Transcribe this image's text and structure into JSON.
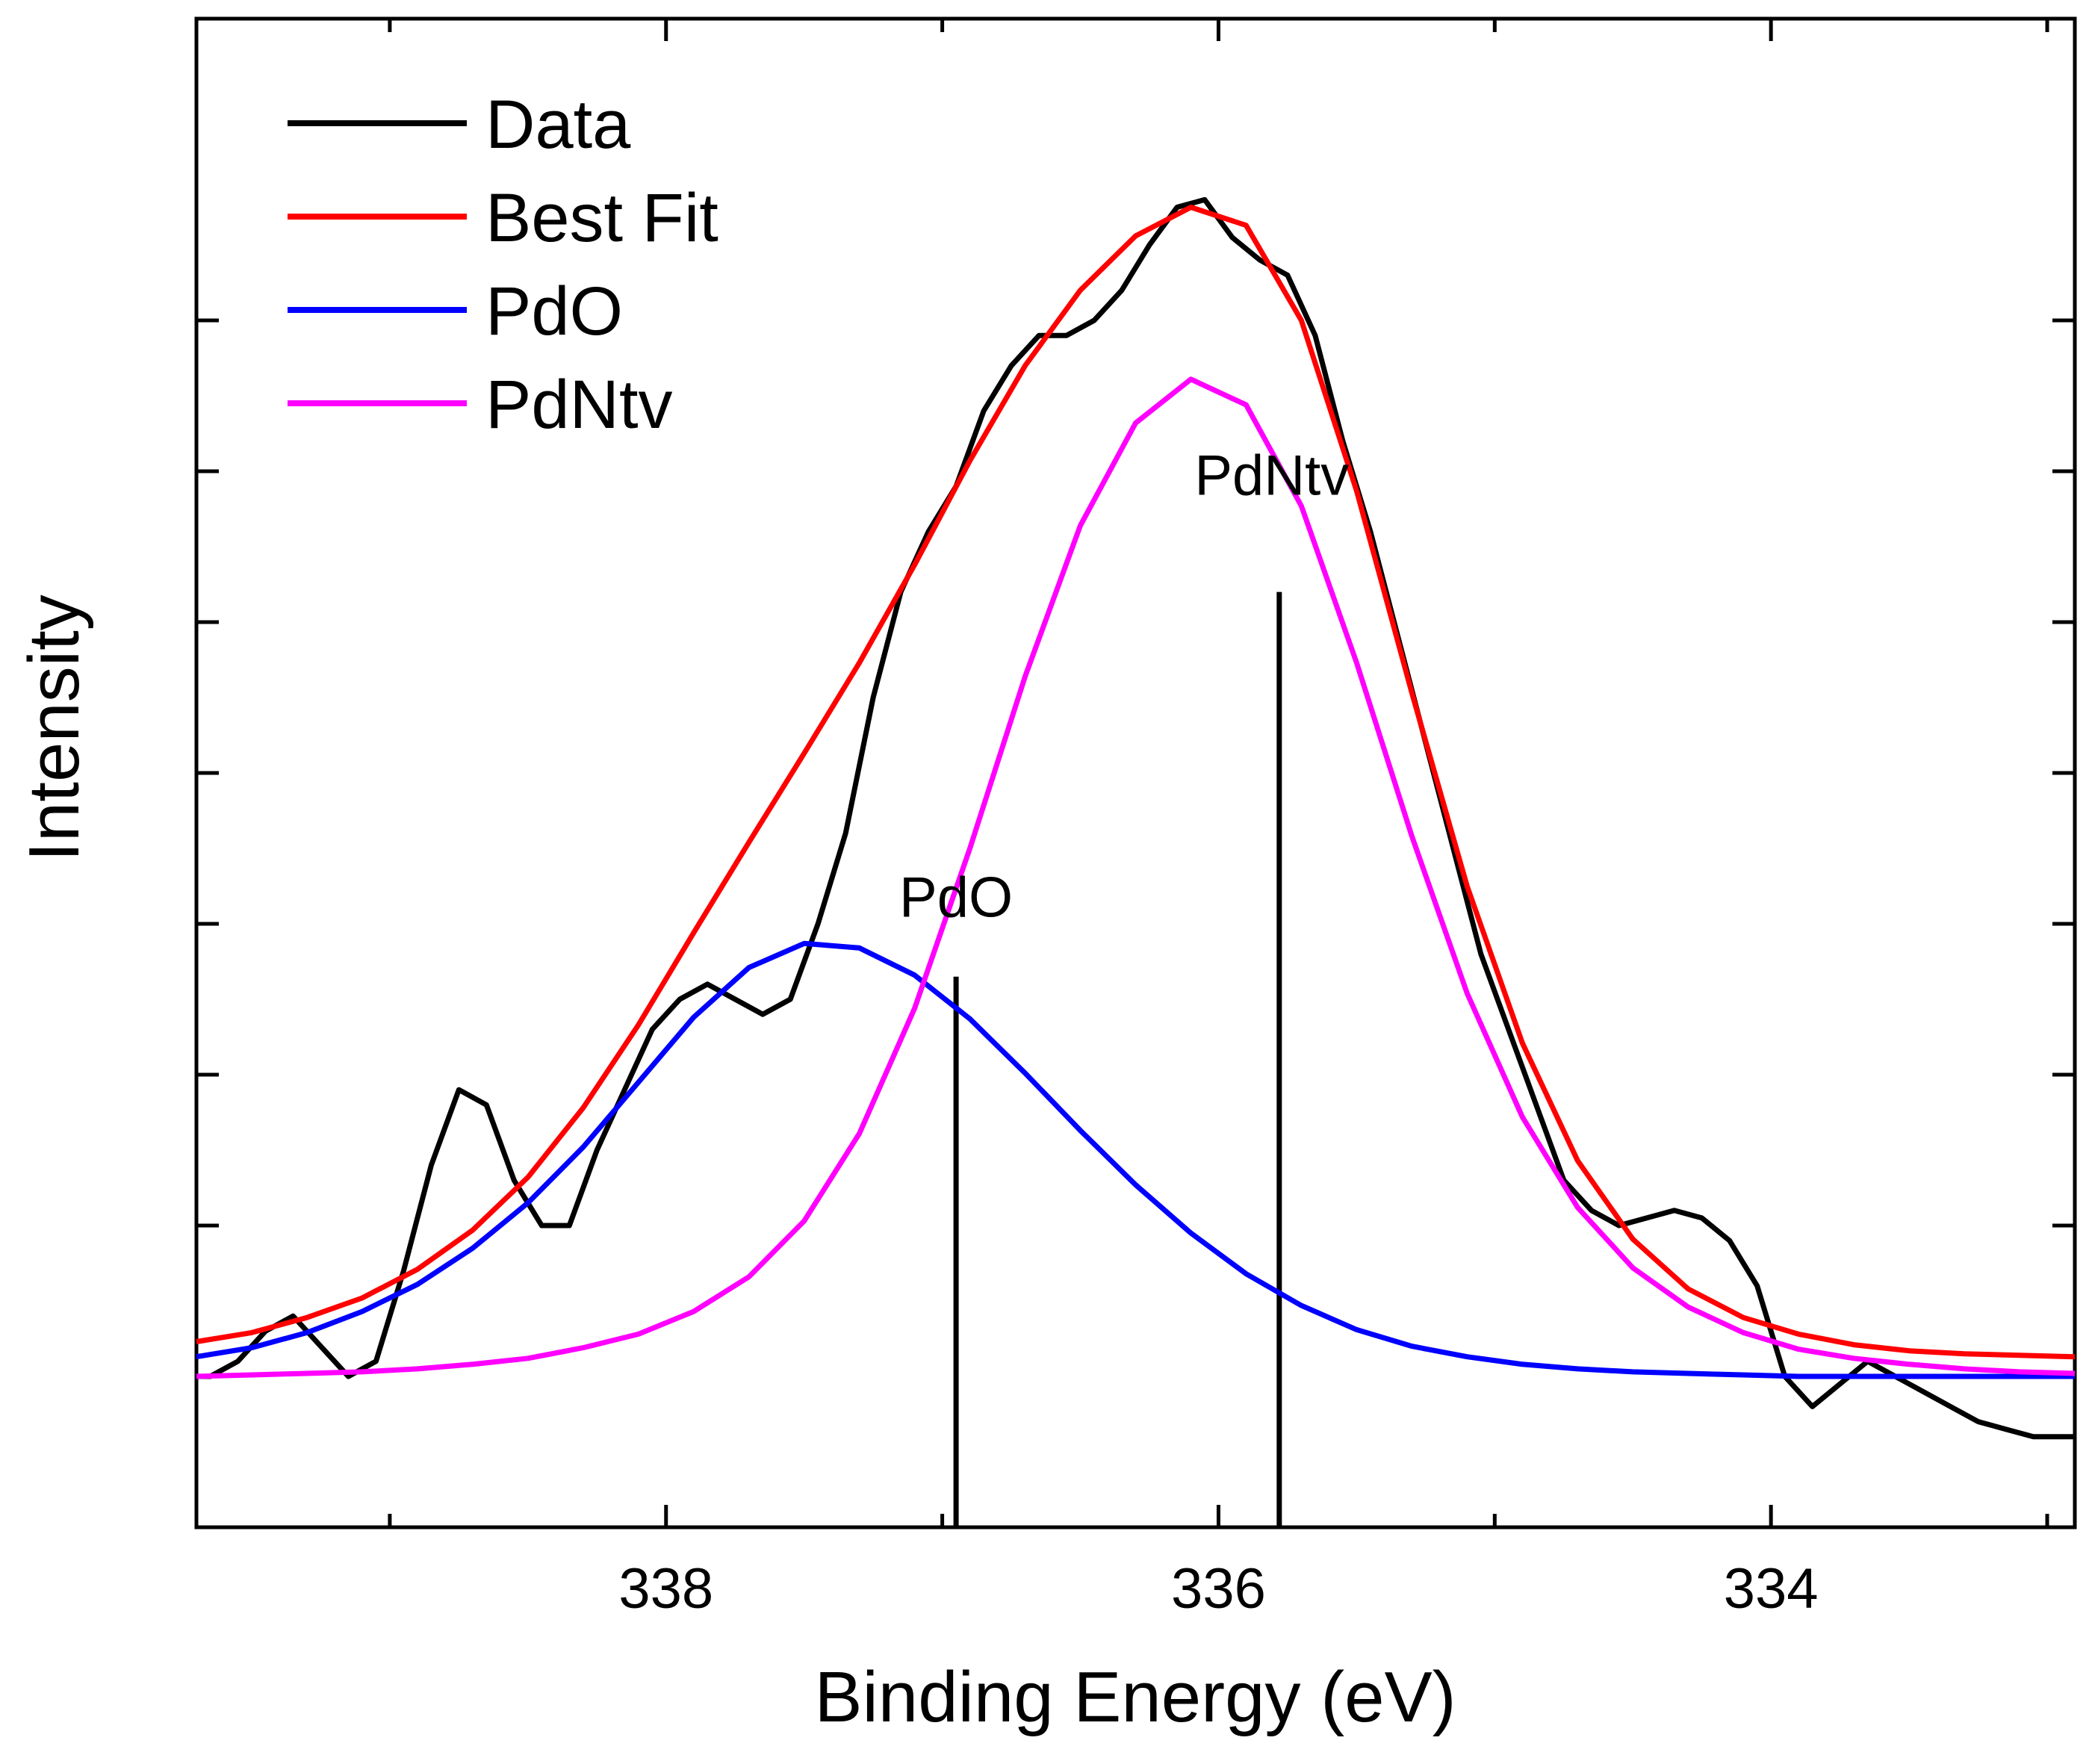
{
  "chart_data": {
    "type": "line",
    "title": "",
    "xlabel": "Binding Energy (eV)",
    "ylabel": "Intensity",
    "xlim": [
      339.7,
      332.9
    ],
    "ylim": [
      0,
      1.0
    ],
    "x_ticks": [
      {
        "value": 338,
        "label": "338"
      },
      {
        "value": 336,
        "label": "336"
      },
      {
        "value": 334,
        "label": "334"
      }
    ],
    "x_minor_ticks": [
      339,
      337,
      335,
      333
    ],
    "y_ticks": [
      0.1,
      0.2,
      0.3,
      0.4,
      0.5,
      0.6,
      0.7,
      0.8
    ],
    "legend": {
      "position": "top-left"
    },
    "series": [
      {
        "name": "Data",
        "color": "#000000",
        "x": [
          339.7,
          339.65,
          339.55,
          339.45,
          339.35,
          339.25,
          339.15,
          339.05,
          338.95,
          338.85,
          338.75,
          338.65,
          338.55,
          338.45,
          338.35,
          338.25,
          338.15,
          338.05,
          337.95,
          337.85,
          337.75,
          337.65,
          337.55,
          337.45,
          337.35,
          337.25,
          337.15,
          337.05,
          336.95,
          336.85,
          336.75,
          336.65,
          336.55,
          336.45,
          336.35,
          336.25,
          336.15,
          336.05,
          335.95,
          335.85,
          335.75,
          335.65,
          335.55,
          335.45,
          335.35,
          335.25,
          335.15,
          335.05,
          334.95,
          334.85,
          334.75,
          334.65,
          334.55,
          334.45,
          334.35,
          334.25,
          334.15,
          334.05,
          333.95,
          333.85,
          333.75,
          333.65,
          333.55,
          333.45,
          333.35,
          333.25,
          333.15,
          333.05,
          332.95,
          332.9
        ],
        "y": [
          0.1,
          0.1,
          0.11,
          0.13,
          0.14,
          0.12,
          0.1,
          0.11,
          0.17,
          0.24,
          0.29,
          0.28,
          0.23,
          0.2,
          0.2,
          0.25,
          0.29,
          0.33,
          0.35,
          0.36,
          0.35,
          0.34,
          0.35,
          0.4,
          0.46,
          0.55,
          0.62,
          0.66,
          0.69,
          0.74,
          0.77,
          0.79,
          0.79,
          0.8,
          0.82,
          0.85,
          0.875,
          0.88,
          0.855,
          0.84,
          0.83,
          0.79,
          0.72,
          0.66,
          0.59,
          0.52,
          0.45,
          0.38,
          0.33,
          0.28,
          0.23,
          0.21,
          0.2,
          0.205,
          0.21,
          0.205,
          0.19,
          0.16,
          0.1,
          0.08,
          0.095,
          0.11,
          0.1,
          0.09,
          0.08,
          0.07,
          0.065,
          0.06,
          0.06,
          0.06
        ]
      },
      {
        "name": "Best Fit",
        "color": "#ff0000",
        "x": [
          339.7,
          339.5,
          339.3,
          339.1,
          338.9,
          338.7,
          338.5,
          338.3,
          338.1,
          337.9,
          337.7,
          337.5,
          337.3,
          337.1,
          336.9,
          336.7,
          336.5,
          336.3,
          336.1,
          335.9,
          335.7,
          335.5,
          335.3,
          335.1,
          334.9,
          334.7,
          334.5,
          334.3,
          334.1,
          333.9,
          333.7,
          333.5,
          333.3,
          333.1,
          332.9
        ],
        "y": [
          0.123,
          0.129,
          0.139,
          0.152,
          0.171,
          0.197,
          0.232,
          0.278,
          0.333,
          0.394,
          0.454,
          0.513,
          0.573,
          0.638,
          0.707,
          0.77,
          0.82,
          0.856,
          0.875,
          0.863,
          0.8,
          0.687,
          0.553,
          0.425,
          0.321,
          0.243,
          0.191,
          0.158,
          0.139,
          0.128,
          0.121,
          0.117,
          0.115,
          0.114,
          0.113
        ]
      },
      {
        "name": "PdO",
        "color": "#0000ff",
        "x": [
          339.7,
          339.5,
          339.3,
          339.1,
          338.9,
          338.7,
          338.5,
          338.3,
          338.1,
          337.9,
          337.7,
          337.5,
          337.3,
          337.1,
          336.9,
          336.7,
          336.5,
          336.3,
          336.1,
          335.9,
          335.7,
          335.5,
          335.3,
          335.1,
          334.9,
          334.7,
          334.5,
          334.3,
          334.1,
          333.9,
          333.7,
          333.5,
          333.3,
          333.1,
          332.9
        ],
        "y": [
          0.113,
          0.119,
          0.129,
          0.143,
          0.161,
          0.185,
          0.215,
          0.252,
          0.295,
          0.338,
          0.371,
          0.387,
          0.384,
          0.366,
          0.337,
          0.301,
          0.263,
          0.227,
          0.195,
          0.168,
          0.147,
          0.131,
          0.12,
          0.113,
          0.108,
          0.105,
          0.103,
          0.102,
          0.101,
          0.1,
          0.1,
          0.1,
          0.1,
          0.1,
          0.1
        ]
      },
      {
        "name": "PdNtv",
        "color": "#ff00ff",
        "x": [
          339.7,
          339.5,
          339.3,
          339.1,
          338.9,
          338.7,
          338.5,
          338.3,
          338.1,
          337.9,
          337.7,
          337.5,
          337.3,
          337.1,
          336.9,
          336.7,
          336.5,
          336.3,
          336.1,
          335.9,
          335.7,
          335.5,
          335.3,
          335.1,
          334.9,
          334.7,
          334.5,
          334.3,
          334.1,
          333.9,
          333.7,
          333.5,
          333.3,
          333.1,
          332.9
        ],
        "y": [
          0.1,
          0.101,
          0.102,
          0.103,
          0.105,
          0.108,
          0.112,
          0.119,
          0.128,
          0.143,
          0.166,
          0.203,
          0.261,
          0.344,
          0.45,
          0.564,
          0.664,
          0.732,
          0.761,
          0.744,
          0.677,
          0.573,
          0.458,
          0.354,
          0.272,
          0.212,
          0.172,
          0.146,
          0.129,
          0.118,
          0.112,
          0.108,
          0.105,
          0.103,
          0.102
        ]
      }
    ],
    "annotations": [
      {
        "label": "PdO",
        "x": 336.95,
        "line_y_top": 0.365
      },
      {
        "label": "PdNtv",
        "x": 335.78,
        "line_y_top": 0.62
      }
    ]
  }
}
